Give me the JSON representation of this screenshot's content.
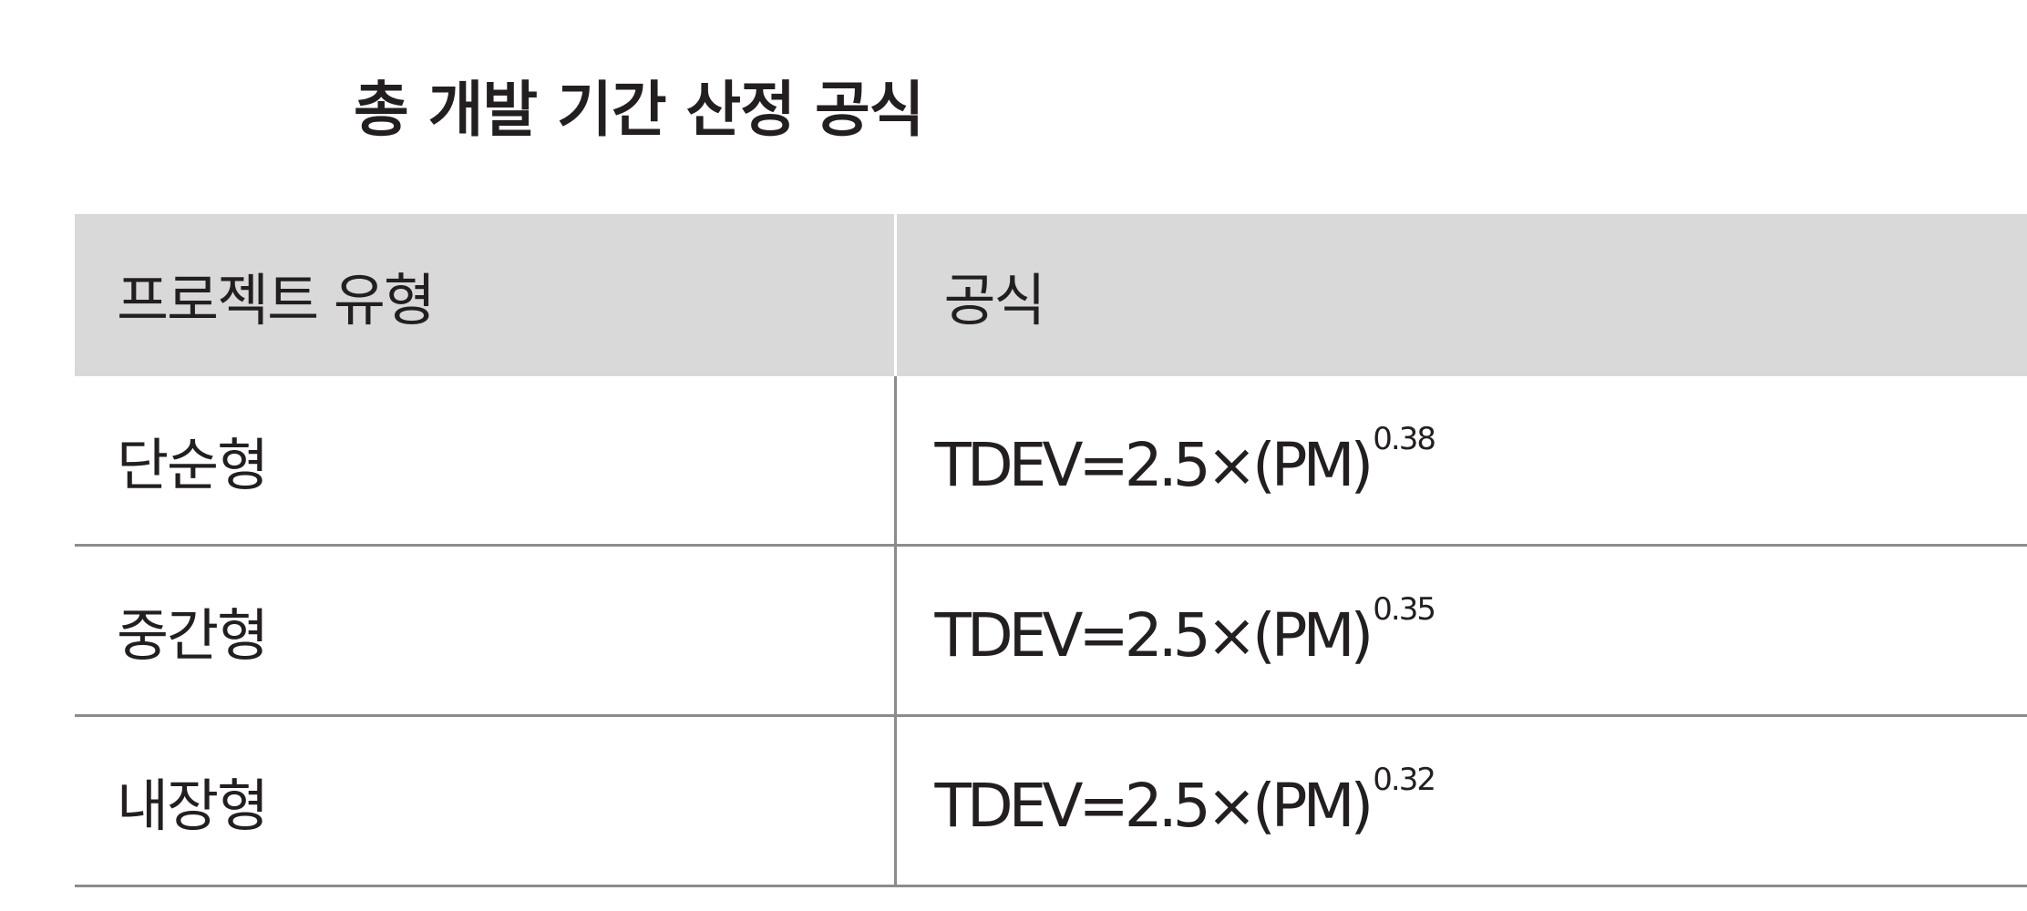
{
  "title": "총 개발 기간 산정 공식",
  "table": {
    "headers": [
      "프로젝트 유형",
      "공식"
    ],
    "rows": [
      {
        "type": "단순형",
        "formula": "TDEV=2.5×(PM)",
        "exponent": "0.38"
      },
      {
        "type": "중간형",
        "formula": "TDEV=2.5×(PM)",
        "exponent": "0.35"
      },
      {
        "type": "내장형",
        "formula": "TDEV=2.5×(PM)",
        "exponent": "0.32"
      }
    ]
  }
}
